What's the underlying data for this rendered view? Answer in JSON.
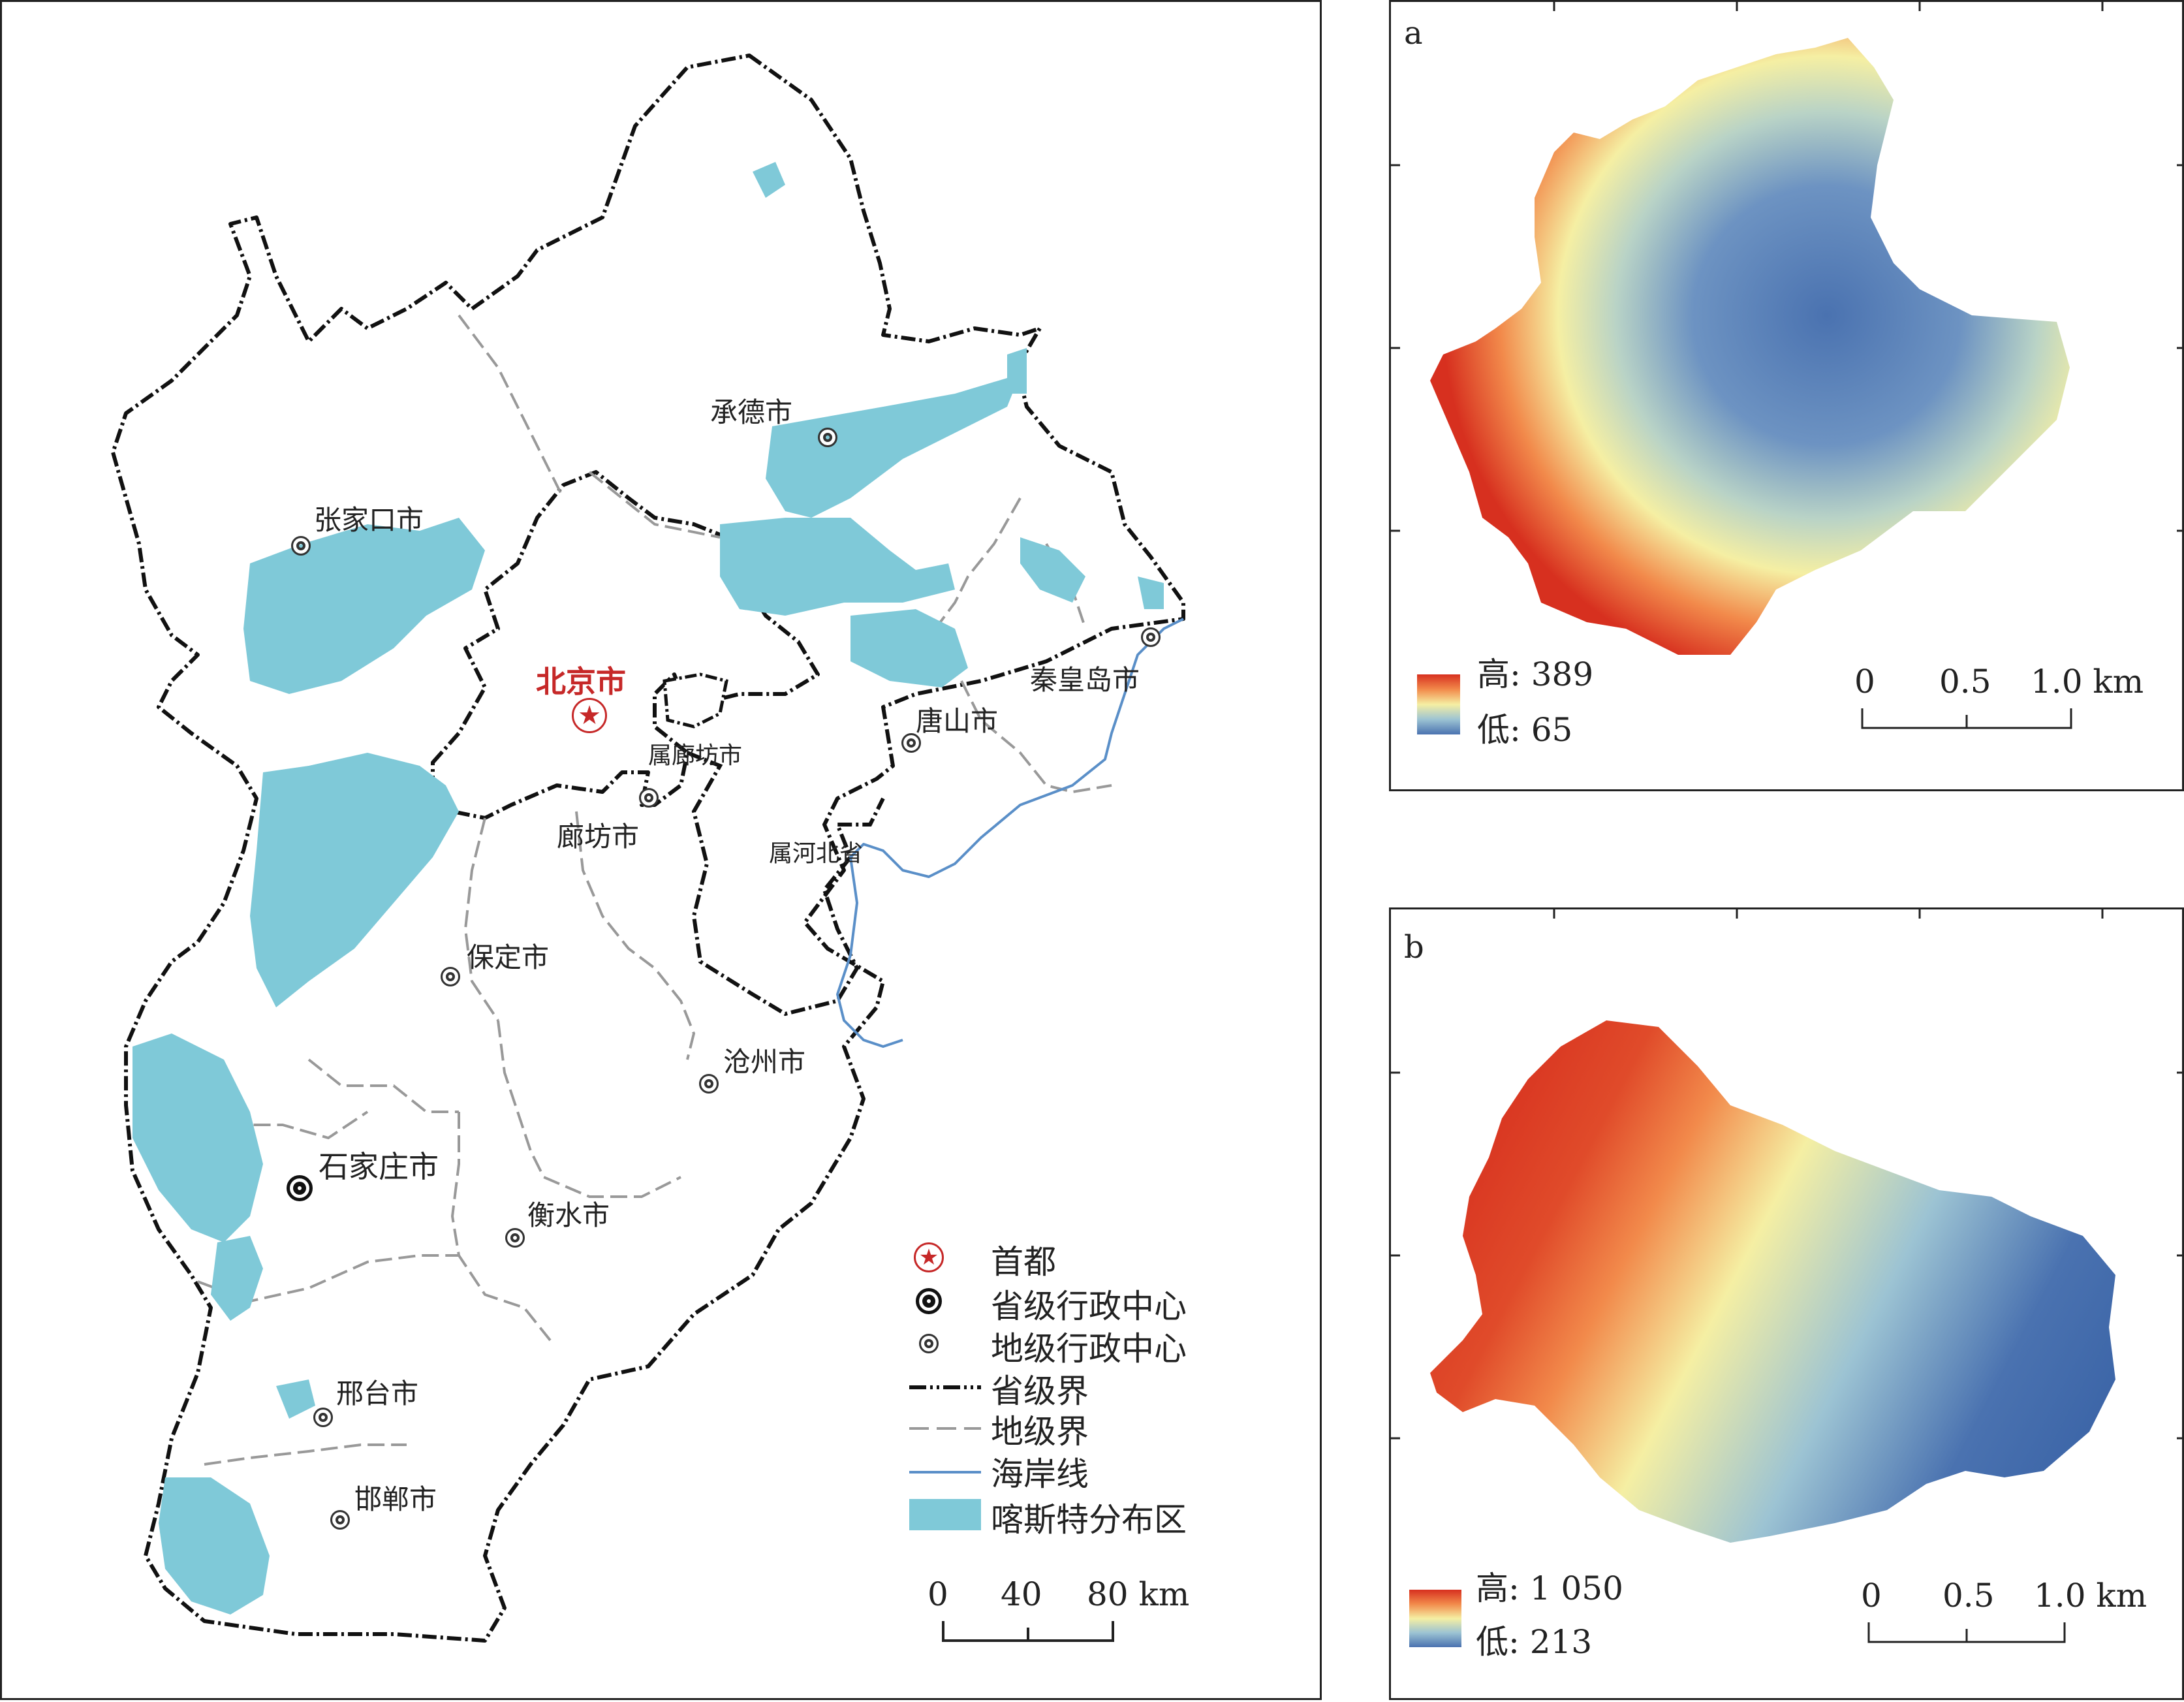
{
  "main_map": {
    "capital": {
      "label": "北京市",
      "color": "#c62828"
    },
    "cities": {
      "chengde": "承德市",
      "zhangjiakou": "张家口市",
      "qinhuangdao": "秦皇岛市",
      "tangshan": "唐山市",
      "langfang_attached": "属廊坊市",
      "langfang": "廊坊市",
      "hebei_attached": "属河北省",
      "baoding": "保定市",
      "cangzhou": "沧州市",
      "shijiazhuang": "石家庄市",
      "hengshui": "衡水市",
      "xingtai": "邢台市",
      "handan": "邯郸市"
    },
    "legend": {
      "capital": "首都",
      "provincial_center": "省级行政中心",
      "prefecture_center": "地级行政中心",
      "provincial_boundary": "省级界",
      "prefecture_boundary": "地级界",
      "coastline": "海岸线",
      "karst_area": "喀斯特分布区"
    },
    "scale": {
      "t0": "0",
      "t1": "40",
      "t2": "80 km"
    },
    "colors": {
      "karst": "#7fc9d8",
      "coast": "#5a8fc8",
      "boundary": "#111111",
      "prefecture": "#999999"
    }
  },
  "panel_a": {
    "label": "a",
    "legend": {
      "high": "高: 389",
      "low": "低: 65"
    },
    "scale": {
      "t0": "0",
      "t1": "0.5",
      "t2": "1.0 km"
    }
  },
  "panel_b": {
    "label": "b",
    "legend": {
      "high": "高: 1 050",
      "low": "低: 213"
    },
    "scale": {
      "t0": "0",
      "t1": "0.5",
      "t2": "1.0 km"
    }
  },
  "elevation_colors": {
    "high": "#d7301f",
    "mid_high": "#f28a4b",
    "mid": "#f5efa3",
    "mid_low": "#9cc3d3",
    "low": "#4a72b0"
  }
}
